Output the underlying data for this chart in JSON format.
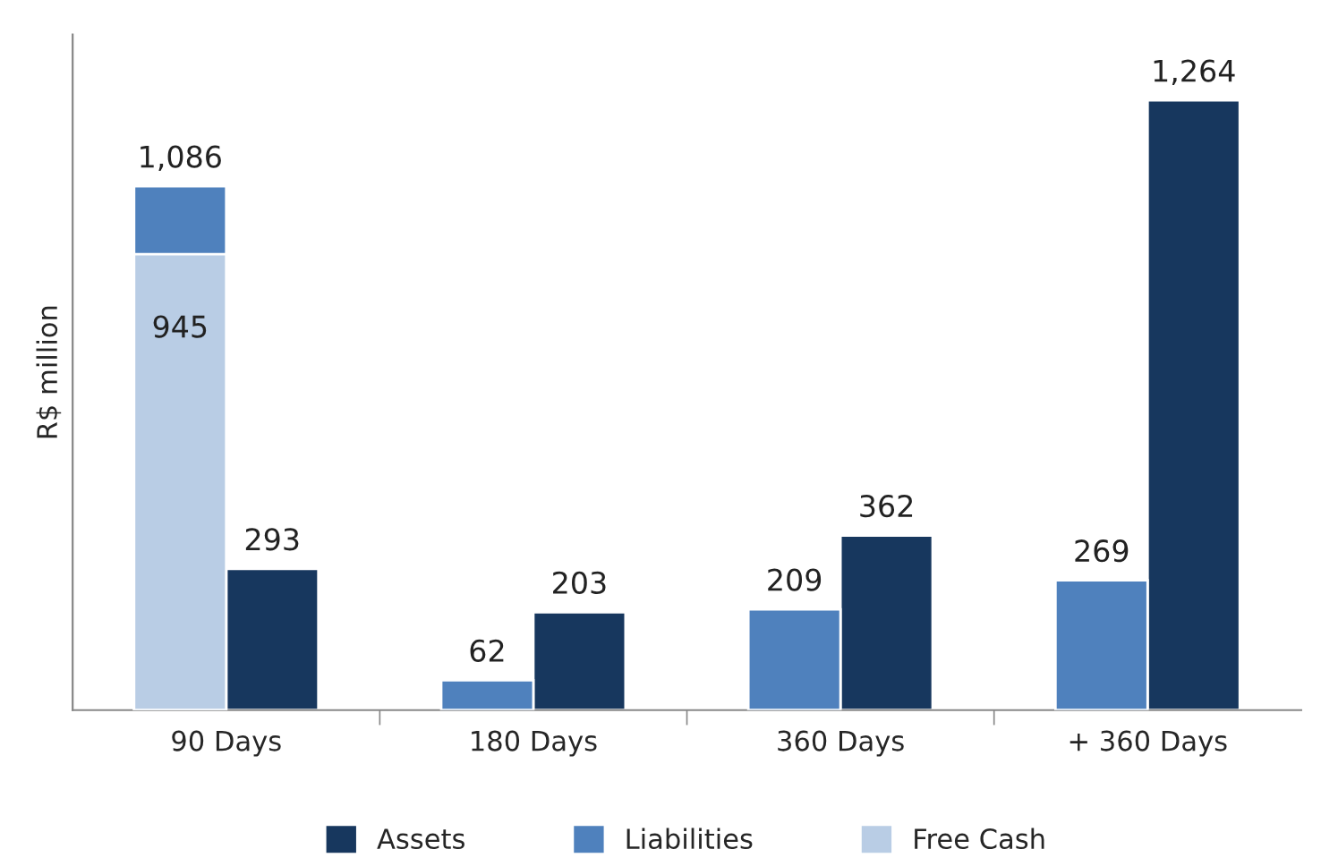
{
  "chart_data": {
    "type": "bar",
    "ylabel": "R$ million",
    "categories": [
      "90 Days",
      "180 Days",
      "360 Days",
      "+ 360 Days"
    ],
    "series": [
      {
        "name": "Assets",
        "color": "#17375e",
        "values": [
          293,
          203,
          362,
          1264
        ],
        "value_labels": [
          "293",
          "203",
          "362",
          "1,264"
        ]
      },
      {
        "name": "Liabilities",
        "color": "#4f81bd",
        "values": [
          1086,
          62,
          209,
          269
        ],
        "value_labels": [
          "1,086",
          "62",
          "209",
          "269"
        ]
      },
      {
        "name": "Free Cash",
        "color": "#b9cde5",
        "values": [
          945,
          null,
          null,
          null
        ],
        "value_labels": [
          "945",
          null,
          null,
          null
        ]
      }
    ],
    "ylim": [
      0,
      1400
    ],
    "tick_labels": "x",
    "legend": "bottom",
    "grid": false
  }
}
